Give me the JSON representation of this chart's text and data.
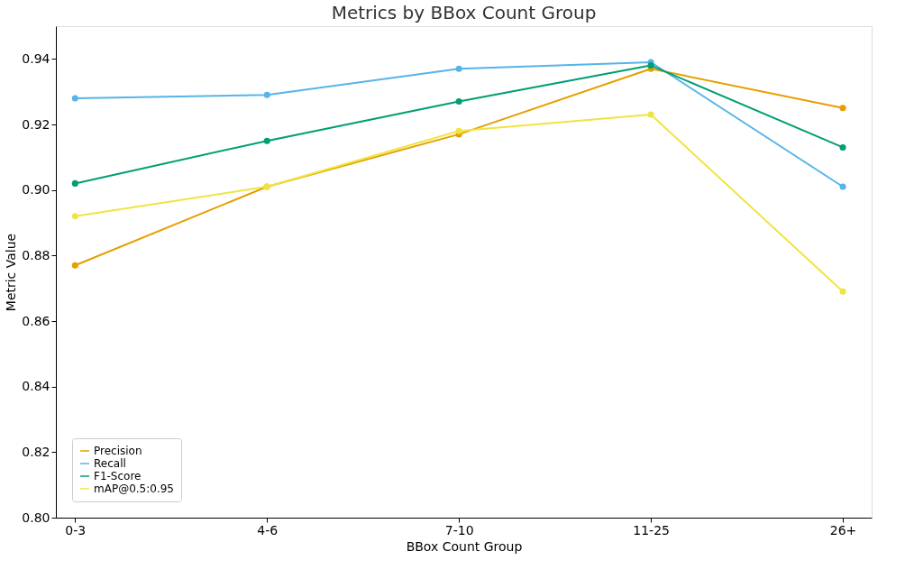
{
  "chart_data": {
    "type": "line",
    "title": "Metrics by BBox Count Group",
    "xlabel": "BBox Count Group",
    "ylabel": "Metric Value",
    "categories": [
      "0-3",
      "4-6",
      "7-10",
      "11-25",
      "26+"
    ],
    "series": [
      {
        "name": "Precision",
        "color": "#e69f00",
        "values": [
          0.877,
          0.901,
          0.917,
          0.937,
          0.925
        ]
      },
      {
        "name": "Recall",
        "color": "#56b4e9",
        "values": [
          0.928,
          0.929,
          0.937,
          0.939,
          0.901
        ]
      },
      {
        "name": "F1-Score",
        "color": "#009e73",
        "values": [
          0.902,
          0.915,
          0.927,
          0.938,
          0.913
        ]
      },
      {
        "name": "mAP@0.5:0.95",
        "color": "#f0e442",
        "values": [
          0.892,
          0.901,
          0.918,
          0.923,
          0.869
        ]
      }
    ],
    "ylim": [
      0.8,
      0.95
    ],
    "yticks": [
      {
        "value": 0.8,
        "label": "0.80"
      },
      0.82,
      0.84,
      0.86,
      0.88,
      {
        "value": 0.9,
        "label": "0.90"
      },
      0.92,
      0.94
    ],
    "legend": "bottom left",
    "marker": "circle",
    "line_style": "solid",
    "grid": false
  }
}
